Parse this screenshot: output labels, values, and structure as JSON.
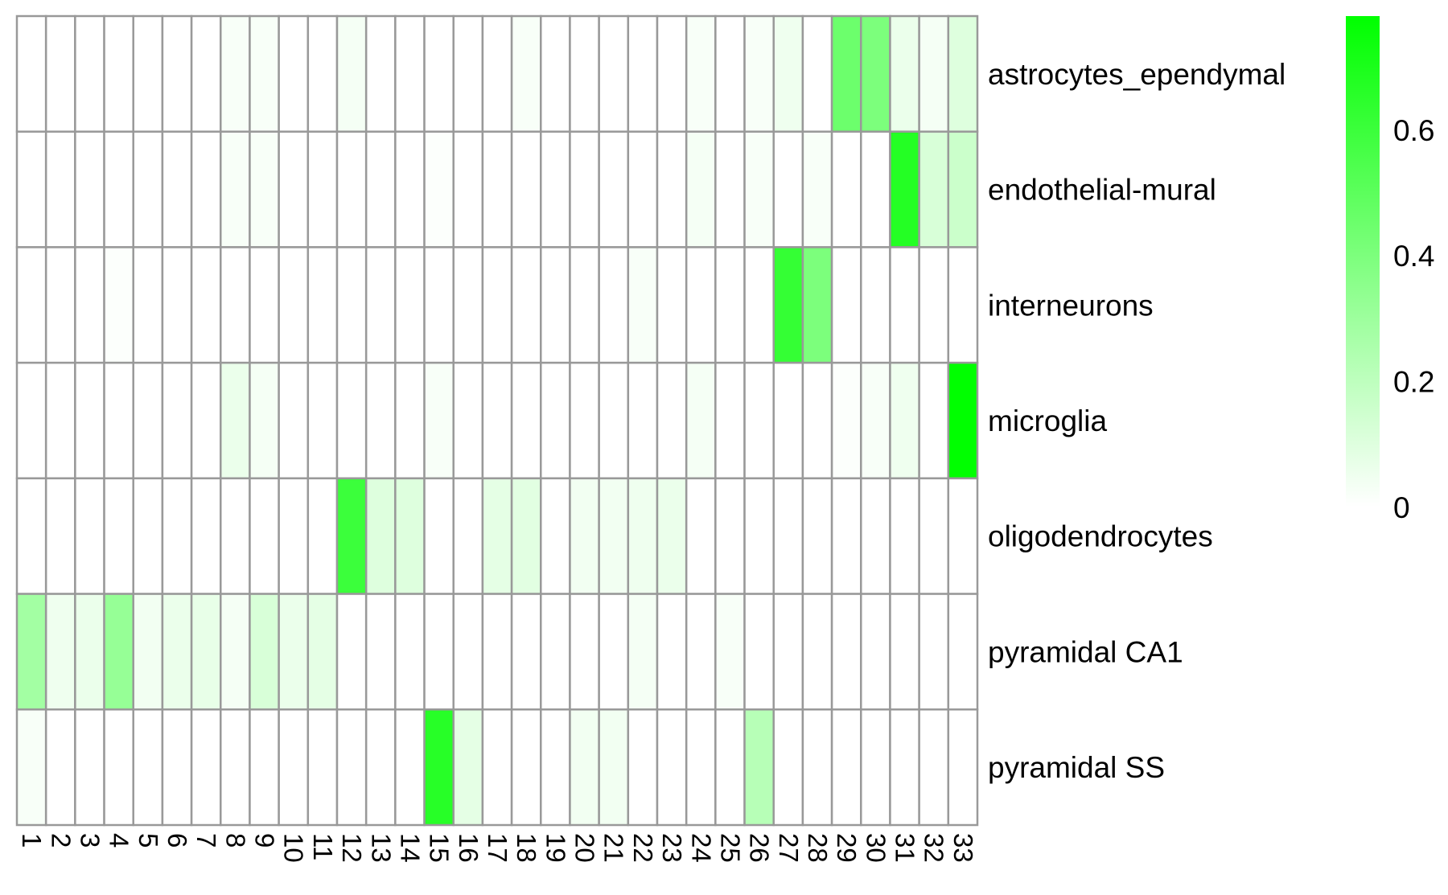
{
  "chart_data": {
    "type": "heatmap",
    "title": "",
    "xlabel": "",
    "ylabel": "",
    "columns": [
      "1",
      "2",
      "3",
      "4",
      "5",
      "6",
      "7",
      "8",
      "9",
      "10",
      "11",
      "12",
      "13",
      "14",
      "15",
      "16",
      "17",
      "18",
      "19",
      "20",
      "21",
      "22",
      "23",
      "24",
      "25",
      "26",
      "27",
      "28",
      "29",
      "30",
      "31",
      "32",
      "33"
    ],
    "rows": [
      "astrocytes_ependymal",
      "endothelial-mural",
      "interneurons",
      "microglia",
      "oligodendrocytes",
      "pyramidal CA1",
      "pyramidal SS"
    ],
    "values": [
      [
        0,
        0,
        0,
        0,
        0,
        0,
        0,
        0.02,
        0.02,
        0,
        0,
        0.03,
        0,
        0,
        0,
        0,
        0,
        0.02,
        0,
        0,
        0,
        0,
        0,
        0.02,
        0,
        0.02,
        0.05,
        0,
        0.45,
        0.4,
        0.06,
        0.03,
        0.1
      ],
      [
        0,
        0,
        0,
        0,
        0,
        0,
        0,
        0.02,
        0.02,
        0,
        0,
        0,
        0,
        0,
        0.01,
        0,
        0,
        0,
        0,
        0,
        0,
        0,
        0,
        0.03,
        0,
        0.02,
        0,
        0.02,
        0,
        0,
        0.67,
        0.12,
        0.16
      ],
      [
        0,
        0,
        0,
        0.01,
        0,
        0,
        0,
        0,
        0,
        0,
        0,
        0,
        0,
        0,
        0,
        0,
        0,
        0,
        0,
        0,
        0,
        0.02,
        0,
        0,
        0,
        0,
        0.62,
        0.4,
        0,
        0,
        0,
        0,
        0
      ],
      [
        0,
        0,
        0,
        0,
        0,
        0,
        0,
        0.06,
        0.03,
        0,
        0,
        0,
        0,
        0,
        0.02,
        0,
        0,
        0,
        0,
        0,
        0,
        0,
        0,
        0.03,
        0,
        0,
        0,
        0,
        0.01,
        0.02,
        0.05,
        0,
        0.78
      ],
      [
        0,
        0,
        0,
        0,
        0,
        0,
        0,
        0,
        0,
        0,
        0,
        0.6,
        0.1,
        0.1,
        0,
        0,
        0.08,
        0.09,
        0,
        0.04,
        0.04,
        0.05,
        0.06,
        0,
        0,
        0,
        0,
        0,
        0,
        0,
        0,
        0,
        0
      ],
      [
        0.28,
        0.05,
        0.06,
        0.32,
        0.04,
        0.06,
        0.07,
        0.03,
        0.12,
        0.06,
        0.08,
        0,
        0,
        0,
        0,
        0,
        0,
        0,
        0,
        0,
        0,
        0.03,
        0,
        0,
        0.02,
        0,
        0,
        0,
        0,
        0,
        0,
        0,
        0
      ],
      [
        0.02,
        0,
        0,
        0,
        0,
        0,
        0,
        0,
        0,
        0,
        0,
        0,
        0,
        0,
        0.66,
        0.08,
        0,
        0,
        0,
        0.04,
        0.04,
        0,
        0,
        0,
        0,
        0.22,
        0,
        0,
        0,
        0,
        0,
        0,
        0
      ]
    ],
    "zlim": [
      0,
      0.78
    ],
    "color_scale": {
      "low": "#ffffff",
      "high": "#00ff00",
      "mid_note": "white to green"
    },
    "colorbar": {
      "ticks": [
        0,
        0.2,
        0.4,
        0.6
      ],
      "tick_labels": [
        "0",
        "0.2",
        "0.4",
        "0.6"
      ],
      "placement": "right"
    },
    "grid_color": "#999999",
    "grid": true,
    "legend_placement": "right"
  }
}
